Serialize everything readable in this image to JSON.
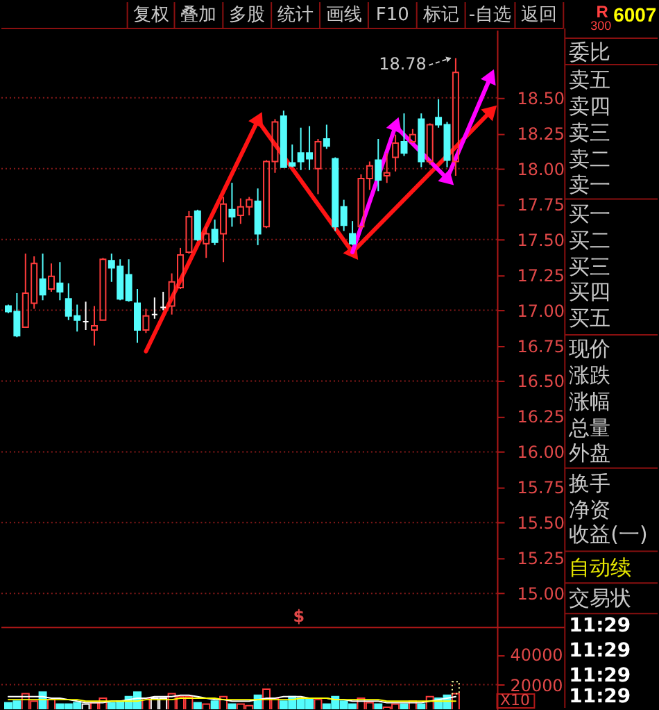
{
  "chart_data": [
    {
      "type": "other",
      "annotations": [
        "复权",
        "叠加",
        "多股",
        "统计",
        "画线",
        "F10",
        "标记",
        "-自选",
        "返回"
      ]
    },
    {
      "type": "candlestick",
      "categories": [
        null,
        null,
        null,
        null,
        null,
        null,
        null,
        null,
        null,
        null,
        null,
        null,
        null,
        null,
        null,
        null,
        null,
        null,
        null,
        null,
        null,
        null,
        null,
        null,
        null,
        null,
        null,
        null,
        null,
        null,
        null,
        null,
        null,
        null,
        null,
        null,
        null,
        null,
        null,
        null,
        null,
        null,
        null,
        null,
        null,
        null,
        null,
        null,
        null,
        null,
        null,
        null,
        null,
        null,
        null,
        null,
        null
      ],
      "ohlc": [
        [
          17.03,
          17.04,
          16.98,
          16.99
        ],
        [
          16.99,
          17.12,
          16.81,
          16.82
        ],
        [
          16.88,
          17.4,
          16.88,
          17.12
        ],
        [
          17.05,
          17.38,
          17.01,
          17.33
        ],
        [
          17.22,
          17.4,
          17.07,
          17.11
        ],
        [
          17.15,
          17.33,
          17.13,
          17.24
        ],
        [
          17.19,
          17.34,
          17.07,
          17.13
        ],
        [
          17.08,
          17.19,
          16.93,
          16.96
        ],
        [
          16.96,
          17.04,
          16.85,
          16.93
        ],
        [
          16.92,
          17.06,
          16.86,
          16.92
        ],
        [
          16.86,
          17.03,
          16.75,
          16.89
        ],
        [
          16.93,
          17.37,
          16.93,
          17.36
        ],
        [
          17.35,
          17.4,
          17.2,
          17.3
        ],
        [
          17.31,
          17.36,
          17.07,
          17.08
        ],
        [
          17.25,
          17.36,
          17.06,
          17.07
        ],
        [
          17.05,
          17.15,
          16.77,
          16.86
        ],
        [
          16.86,
          17.01,
          16.84,
          16.96
        ],
        [
          16.97,
          17.09,
          16.94,
          16.97
        ],
        [
          17.02,
          17.13,
          17.0,
          17.02
        ],
        [
          17.03,
          17.26,
          16.97,
          17.2
        ],
        [
          17.16,
          17.44,
          17.15,
          17.39
        ],
        [
          17.41,
          17.7,
          17.4,
          17.66
        ],
        [
          17.7,
          17.71,
          17.49,
          17.5
        ],
        [
          17.47,
          17.59,
          17.37,
          17.54
        ],
        [
          17.57,
          17.64,
          17.46,
          17.48
        ],
        [
          17.54,
          17.8,
          17.34,
          17.75
        ],
        [
          17.71,
          17.9,
          17.59,
          17.66
        ],
        [
          17.67,
          17.79,
          17.61,
          17.73
        ],
        [
          17.73,
          17.8,
          17.67,
          17.78
        ],
        [
          17.77,
          17.86,
          17.46,
          17.54
        ],
        [
          17.59,
          18.06,
          17.58,
          18.05
        ],
        [
          18.05,
          18.35,
          17.97,
          18.33
        ],
        [
          18.37,
          18.41,
          18.01,
          18.01
        ],
        [
          18.04,
          18.17,
          18.01,
          18.02
        ],
        [
          18.11,
          18.29,
          17.99,
          18.05
        ],
        [
          18.11,
          18.3,
          17.99,
          18.07
        ],
        [
          18.0,
          18.21,
          17.82,
          18.19
        ],
        [
          18.21,
          18.31,
          18.14,
          18.16
        ],
        [
          18.07,
          18.08,
          17.56,
          17.59
        ],
        [
          17.73,
          17.78,
          17.56,
          17.6
        ],
        [
          17.54,
          17.63,
          17.46,
          17.47
        ],
        [
          17.59,
          17.96,
          17.57,
          17.93
        ],
        [
          17.93,
          18.05,
          17.85,
          18.02
        ],
        [
          18.06,
          18.21,
          17.84,
          17.92
        ],
        [
          17.95,
          18.11,
          17.9,
          17.97
        ],
        [
          18.08,
          18.24,
          17.98,
          18.18
        ],
        [
          18.19,
          18.39,
          18.09,
          18.11
        ],
        [
          18.19,
          18.28,
          18.18,
          18.24
        ],
        [
          18.35,
          18.39,
          18.01,
          18.05
        ],
        [
          18.05,
          18.32,
          18.03,
          18.31
        ],
        [
          18.36,
          18.49,
          18.29,
          18.31
        ],
        [
          18.31,
          18.33,
          18.01,
          18.06
        ],
        [
          18.05,
          18.78,
          17.95,
          18.68
        ],
        null,
        null,
        null,
        null
      ],
      "colors": [
        "#54fcfc",
        "#54fcfc",
        "#ff3c3c",
        "#ff3c3c",
        "#54fcfc",
        "#ff3c3c",
        "#54fcfc",
        "#54fcfc",
        "#54fcfc",
        "#ffffff",
        "#ff3c3c",
        "#ff3c3c",
        "#54fcfc",
        "#54fcfc",
        "#54fcfc",
        "#54fcfc",
        "#ff3c3c",
        "#ffffff",
        "#ffffff",
        "#ff3c3c",
        "#ff3c3c",
        "#ff3c3c",
        "#54fcfc",
        "#ff3c3c",
        "#54fcfc",
        "#ff3c3c",
        "#54fcfc",
        "#ff3c3c",
        "#ff3c3c",
        "#54fcfc",
        "#ff3c3c",
        "#ff3c3c",
        "#54fcfc",
        "#54fcfc",
        "#54fcfc",
        "#54fcfc",
        "#ff3c3c",
        "#54fcfc",
        "#54fcfc",
        "#54fcfc",
        "#54fcfc",
        "#ff3c3c",
        "#ff3c3c",
        "#54fcfc",
        "#ff3c3c",
        "#ff3c3c",
        "#54fcfc",
        "#ff3c3c",
        "#54fcfc",
        "#ff3c3c",
        "#54fcfc",
        "#54fcfc",
        "#ff3c3c",
        null,
        null,
        null,
        null
      ],
      "series": [
        {
          "type": "line",
          "color": "#ff1414",
          "values": [
            null,
            null,
            null,
            null,
            null,
            null,
            null,
            null,
            null,
            null,
            null,
            null,
            null,
            null,
            null,
            null,
            16.71,
            null,
            null,
            null,
            null,
            null,
            null,
            null,
            null,
            null,
            null,
            null,
            null,
            18.34,
            null,
            null,
            null,
            null,
            null,
            null,
            null,
            null,
            null,
            null,
            17.41,
            null,
            null,
            null,
            null,
            null,
            null,
            null,
            null,
            null,
            null,
            null,
            null,
            null,
            null,
            null,
            18.4
          ]
        },
        {
          "type": "line",
          "color": "#ff00ff",
          "values": [
            null,
            null,
            null,
            null,
            null,
            null,
            null,
            null,
            null,
            null,
            null,
            null,
            null,
            null,
            null,
            null,
            null,
            null,
            null,
            null,
            null,
            null,
            null,
            null,
            null,
            null,
            null,
            null,
            null,
            null,
            null,
            null,
            null,
            null,
            null,
            null,
            null,
            null,
            null,
            null,
            17.41,
            null,
            null,
            null,
            null,
            18.3,
            null,
            null,
            null,
            null,
            null,
            17.93,
            null,
            null,
            null,
            null,
            18.64
          ]
        }
      ],
      "marker": "triangle",
      "ylim": [
        14.76,
        18.98
      ],
      "yticks": [
        {
          "value": 15,
          "label": "15.00"
        },
        {
          "value": 15.25,
          "label": "15.25"
        },
        {
          "value": 15.5,
          "label": "15.50"
        },
        {
          "value": 15.75,
          "label": "15.75"
        },
        {
          "value": 16,
          "label": "16.00"
        },
        {
          "value": 16.25,
          "label": "16.25"
        },
        {
          "value": 16.5,
          "label": "16.50"
        },
        {
          "value": 16.75,
          "label": "16.75"
        },
        {
          "value": 17,
          "label": "17.00"
        },
        {
          "value": 17.25,
          "label": "17.25"
        },
        {
          "value": 17.5,
          "label": "17.50"
        },
        {
          "value": 17.75,
          "label": "17.75"
        },
        {
          "value": 18,
          "label": "18.00"
        },
        {
          "value": 18.25,
          "label": "18.25"
        },
        {
          "value": 18.5,
          "label": "18.50"
        }
      ],
      "grid": "y",
      "tick_labels": "y",
      "annotations": [
        "$",
        "18.78"
      ]
    },
    {
      "type": "bar",
      "categories": [
        null,
        null,
        null,
        null,
        null,
        null,
        null,
        null,
        null,
        null,
        null,
        null,
        null,
        null,
        null,
        null,
        null,
        null,
        null,
        null,
        null,
        null,
        null,
        null,
        null,
        null,
        null,
        null,
        null,
        null,
        null,
        null,
        null,
        null,
        null,
        null,
        null,
        null,
        null,
        null,
        null,
        null,
        null,
        null,
        null,
        null,
        null,
        null,
        null,
        null,
        null,
        null,
        null,
        null,
        null,
        null,
        null
      ],
      "stacked": true,
      "series": [
        {
          "colors": [
            "#54fcfc",
            "#54fcfc",
            "#ff3c3c",
            "#ff3c3c",
            "#54fcfc",
            "#ff3c3c",
            "#54fcfc",
            "#54fcfc",
            "#54fcfc",
            "#ffffff",
            "#ff3c3c",
            "#ff3c3c",
            "#54fcfc",
            "#54fcfc",
            "#54fcfc",
            "#54fcfc",
            "#ff3c3c",
            "#ffffff",
            "#ffffff",
            "#ff3c3c",
            "#ff3c3c",
            "#ff3c3c",
            "#54fcfc",
            "#ff3c3c",
            "#54fcfc",
            "#ff3c3c",
            "#54fcfc",
            "#ff3c3c",
            "#ff3c3c",
            "#54fcfc",
            "#ff3c3c",
            "#ff3c3c",
            "#54fcfc",
            "#54fcfc",
            "#54fcfc",
            "#54fcfc",
            "#ff3c3c",
            "#54fcfc",
            "#54fcfc",
            "#54fcfc",
            "#54fcfc",
            "#ff3c3c",
            "#ff3c3c",
            "#54fcfc",
            "#ff3c3c",
            "#ff3c3c",
            "#54fcfc",
            "#ff3c3c",
            "#54fcfc",
            "#ff3c3c",
            "#54fcfc",
            "#54fcfc",
            "#ff3c3c",
            null,
            null,
            null,
            null
          ],
          "values": [
            8000,
            9000,
            14000,
            9000,
            15000,
            10000,
            7000,
            7000,
            8000,
            7000,
            8000,
            11000,
            8000,
            9000,
            12000,
            15000,
            11000,
            11000,
            11000,
            14000,
            12000,
            12000,
            8000,
            7000,
            9000,
            12000,
            7000,
            7000,
            6000,
            13000,
            17000,
            11000,
            9000,
            12000,
            11000,
            11000,
            10000,
            7000,
            12000,
            9000,
            7000,
            11000,
            8000,
            7000,
            5000,
            7000,
            7000,
            9000,
            7000,
            12000,
            11000,
            13000,
            14000,
            null,
            null,
            null,
            null
          ]
        },
        {
          "color": "#ffffa0",
          "line_style": "dotted",
          "values": [
            null,
            null,
            null,
            null,
            null,
            null,
            null,
            null,
            null,
            null,
            null,
            null,
            null,
            null,
            null,
            null,
            null,
            null,
            null,
            null,
            null,
            null,
            null,
            null,
            null,
            null,
            null,
            null,
            null,
            null,
            null,
            null,
            null,
            null,
            null,
            null,
            null,
            null,
            null,
            null,
            null,
            null,
            null,
            null,
            null,
            null,
            null,
            null,
            null,
            null,
            null,
            null,
            8000,
            null,
            null,
            null,
            null
          ]
        },
        {
          "type": "line",
          "color": "#ffffff",
          "values": [
            12000,
            12000,
            12000,
            12000,
            12000,
            11000,
            11000,
            10000,
            9000,
            8000,
            8000,
            8000,
            9000,
            9000,
            10000,
            11000,
            11000,
            12000,
            12000,
            12000,
            13000,
            13000,
            12000,
            11000,
            10000,
            10000,
            9000,
            9000,
            9000,
            10000,
            11000,
            11000,
            12000,
            12000,
            12000,
            11000,
            11000,
            11000,
            10000,
            10000,
            9000,
            9000,
            9000,
            9000,
            8000,
            8000,
            8000,
            8000,
            8000,
            9000,
            10000,
            11000,
            12000,
            null,
            null,
            null,
            null
          ]
        },
        {
          "type": "line",
          "color": "#ffff00",
          "values": [
            10000,
            10000,
            10000,
            10000,
            10000,
            10000,
            10000,
            10000,
            10000,
            9000,
            9000,
            9000,
            9000,
            9000,
            9000,
            9000,
            10000,
            10000,
            10000,
            10000,
            11000,
            11000,
            11000,
            11000,
            11000,
            10000,
            10000,
            10000,
            10000,
            10000,
            10000,
            10000,
            10000,
            10000,
            11000,
            11000,
            11000,
            11000,
            10000,
            10000,
            10000,
            10000,
            10000,
            10000,
            9000,
            9000,
            9000,
            9000,
            9000,
            9000,
            9000,
            9000,
            9000,
            null,
            null,
            null,
            null
          ]
        }
      ],
      "ylim": [
        3600,
        58200
      ],
      "yticks": [
        20000,
        40000
      ],
      "tick_labels": "y",
      "ref_lines": [
        {
          "axis": "y",
          "value": 20000,
          "color": "#8a1a1a",
          "line_style": "dotted"
        }
      ],
      "annotations": [
        "X10"
      ]
    },
    {
      "type": "other",
      "annotations": [
        "R",
        "300",
        "6007",
        "委比",
        "卖五",
        "卖四",
        "卖三",
        "卖二",
        "卖一",
        "买一",
        "买二",
        "买三",
        "买四",
        "买五",
        "现价",
        "涨跌",
        "涨幅",
        "总量",
        "外盘",
        "换手",
        "净资",
        "收益(一)",
        "自动续",
        "交易状",
        "11:29",
        "11:29",
        "11:29",
        "11:29"
      ]
    }
  ]
}
